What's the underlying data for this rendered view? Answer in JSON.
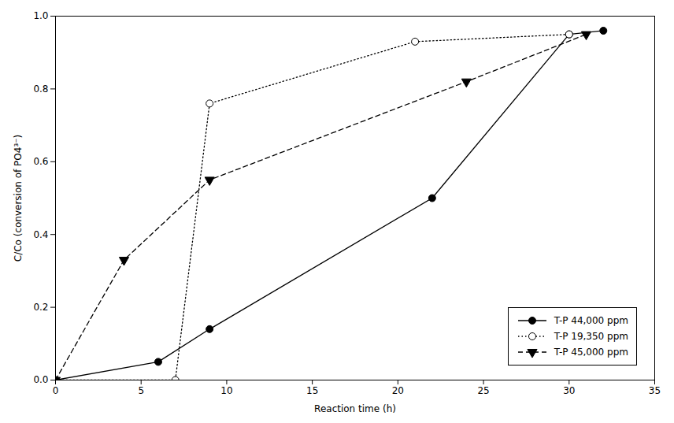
{
  "chart_data": {
    "type": "line",
    "xlabel": "Reaction time (h)",
    "ylabel": "C/Co (conversion of PO4³⁻)",
    "xlim": [
      0,
      35
    ],
    "ylim": [
      0.0,
      1.0
    ],
    "xticks": [
      0,
      5,
      10,
      15,
      20,
      25,
      30,
      35
    ],
    "yticks": [
      {
        "value": 0.0,
        "label": "0.0"
      },
      0.2,
      0.4,
      0.6,
      0.8,
      {
        "value": 1.0,
        "label": "1.0"
      }
    ],
    "grid": false,
    "legend": "lower right",
    "series": [
      {
        "name": "T-P 44,000 ppm",
        "color": "black",
        "x": [
          0,
          6,
          9,
          22,
          30,
          32
        ],
        "values": [
          0.0,
          0.05,
          0.14,
          0.5,
          0.95,
          0.96
        ],
        "line_style": "solid",
        "marker": "filled_circle"
      },
      {
        "name": "T-P 19,350 ppm",
        "color": "black",
        "x": [
          0,
          7,
          9,
          21,
          30
        ],
        "values": [
          0.0,
          0.0,
          0.76,
          0.93,
          0.95
        ],
        "line_style": "dotted",
        "marker": "open_circle"
      },
      {
        "name": "T-P 45,000 ppm",
        "color": "black",
        "x": [
          0,
          4,
          9,
          24,
          31
        ],
        "values": [
          0.0,
          0.33,
          0.55,
          0.82,
          0.95
        ],
        "line_style": "dashed",
        "marker": "filled_triangle_down"
      }
    ]
  }
}
